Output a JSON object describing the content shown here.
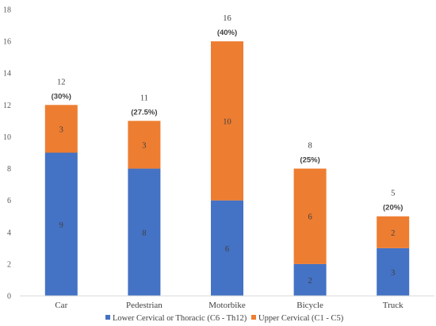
{
  "chart_data": {
    "type": "bar",
    "stacked": true,
    "categories": [
      "Car",
      "Pedestrian",
      "Motorbike",
      "Bicycle",
      "Truck"
    ],
    "series": [
      {
        "name": "Lower Cervical or Thoracic (C6 - Th12)",
        "values": [
          9,
          8,
          6,
          2,
          3
        ],
        "color": "#4472c4"
      },
      {
        "name": "Upper Cervical (C1 - C5)",
        "values": [
          3,
          3,
          10,
          6,
          2
        ],
        "color": "#ed7d31"
      }
    ],
    "totals": [
      "12",
      "11",
      "16",
      "8",
      "5"
    ],
    "percent_labels": [
      "(30%)",
      "(27.5%)",
      "(40%)",
      "(25%)",
      "(20%)"
    ],
    "ylim": [
      0,
      18
    ],
    "yticks": [
      0,
      2,
      4,
      6,
      8,
      10,
      12,
      14,
      16,
      18
    ],
    "title": "",
    "xlabel": "",
    "ylabel": "",
    "legend_position": "bottom",
    "grid": false
  }
}
